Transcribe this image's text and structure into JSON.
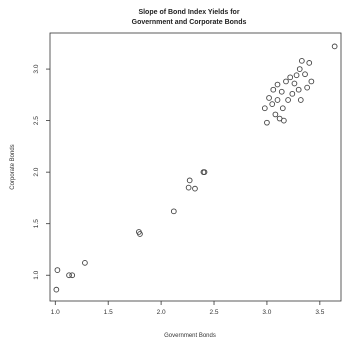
{
  "chart_data": {
    "type": "scatter",
    "title_lines": [
      "Slope of Bond Index Yields for",
      "Government and Corporate Bonds"
    ],
    "xlabel": "Government Bonds",
    "ylabel": "Corporate Bonds",
    "xlim": [
      0.95,
      3.7
    ],
    "ylim": [
      0.75,
      3.35
    ],
    "xticks": [
      1.0,
      1.5,
      2.0,
      2.5,
      3.0,
      3.5
    ],
    "xtick_labels": [
      "1.0",
      "1.5",
      "2.0",
      "2.5",
      "3.0",
      "3.5"
    ],
    "yticks": [
      1.0,
      1.5,
      2.0,
      2.5,
      3.0
    ],
    "ytick_labels": [
      "1.0",
      "1.5",
      "2.0",
      "2.5",
      "3.0"
    ],
    "grid": false,
    "legend": "none",
    "points": [
      {
        "x": 1.01,
        "y": 0.86
      },
      {
        "x": 1.02,
        "y": 1.05
      },
      {
        "x": 1.13,
        "y": 1.0
      },
      {
        "x": 1.16,
        "y": 1.0
      },
      {
        "x": 1.28,
        "y": 1.12
      },
      {
        "x": 1.79,
        "y": 1.42
      },
      {
        "x": 1.8,
        "y": 1.4
      },
      {
        "x": 2.12,
        "y": 1.62
      },
      {
        "x": 2.26,
        "y": 1.85
      },
      {
        "x": 2.27,
        "y": 1.92
      },
      {
        "x": 2.32,
        "y": 1.84
      },
      {
        "x": 2.4,
        "y": 2.0
      },
      {
        "x": 2.41,
        "y": 2.0
      },
      {
        "x": 2.98,
        "y": 2.62
      },
      {
        "x": 3.0,
        "y": 2.48
      },
      {
        "x": 3.02,
        "y": 2.72
      },
      {
        "x": 3.05,
        "y": 2.66
      },
      {
        "x": 3.06,
        "y": 2.8
      },
      {
        "x": 3.08,
        "y": 2.56
      },
      {
        "x": 3.1,
        "y": 2.85
      },
      {
        "x": 3.1,
        "y": 2.7
      },
      {
        "x": 3.12,
        "y": 2.52
      },
      {
        "x": 3.14,
        "y": 2.78
      },
      {
        "x": 3.15,
        "y": 2.62
      },
      {
        "x": 3.16,
        "y": 2.5
      },
      {
        "x": 3.18,
        "y": 2.88
      },
      {
        "x": 3.2,
        "y": 2.7
      },
      {
        "x": 3.22,
        "y": 2.92
      },
      {
        "x": 3.24,
        "y": 2.76
      },
      {
        "x": 3.26,
        "y": 2.86
      },
      {
        "x": 3.28,
        "y": 2.94
      },
      {
        "x": 3.3,
        "y": 2.8
      },
      {
        "x": 3.31,
        "y": 3.0
      },
      {
        "x": 3.32,
        "y": 2.7
      },
      {
        "x": 3.33,
        "y": 3.08
      },
      {
        "x": 3.36,
        "y": 2.95
      },
      {
        "x": 3.38,
        "y": 2.82
      },
      {
        "x": 3.4,
        "y": 3.06
      },
      {
        "x": 3.42,
        "y": 2.88
      },
      {
        "x": 3.64,
        "y": 3.22
      }
    ]
  }
}
